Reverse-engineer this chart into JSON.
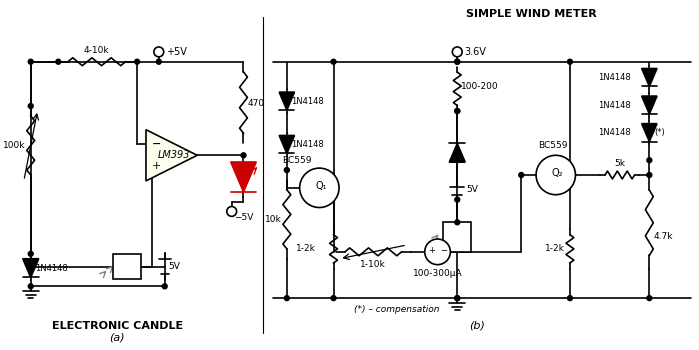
{
  "bg_color": "#ffffff",
  "lm393_fill": "#fffff0",
  "led_color": "#cc0000",
  "lw": 1.2,
  "title_a": "ELECTRONIC CANDLE",
  "title_b": "SIMPLE WIND METER",
  "label_a": "(a)",
  "label_b": "(b)",
  "comp_note": "(*) – compensation"
}
